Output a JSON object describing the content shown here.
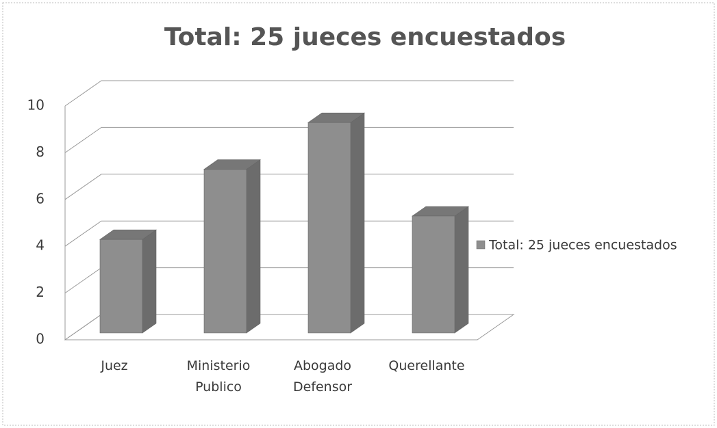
{
  "chart_data": {
    "type": "bar3d",
    "title": "Total: 25 jueces encuestados",
    "categories": [
      "Juez",
      "Ministerio Publico",
      "Abogado Defensor",
      "Querellante"
    ],
    "series": [
      {
        "name": "Total: 25 jueces encuestados",
        "color": "#8e8e8e",
        "values": [
          4,
          7,
          9,
          5
        ]
      }
    ],
    "ylim": [
      0,
      10
    ],
    "yticks": [
      0,
      2,
      4,
      6,
      8,
      10
    ],
    "grid": true,
    "legend": "right"
  }
}
